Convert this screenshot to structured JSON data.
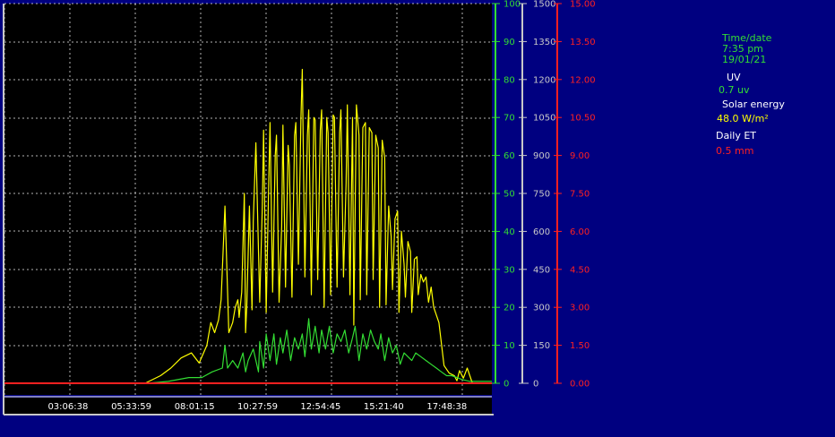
{
  "info": {
    "time_label": "Time/date",
    "time": "7:35 pm",
    "date": "19/01/21",
    "uv_label": "UV",
    "uv_value": "0.7 uv",
    "solar_label": "Solar energy",
    "solar_value": "48.0 W/m²",
    "et_label": "Daily ET",
    "et_value": "0.5 mm"
  },
  "colors": {
    "background": "#000080",
    "plot_background": "#000000",
    "uv": "#33dd33",
    "solar": "#ffff00",
    "et": "#ff2020",
    "grid": "#ffffff"
  },
  "chart_data": {
    "type": "line",
    "grid": true,
    "x_tick_labels": [
      "03:06:38",
      "05:33:59",
      "08:01:15",
      "10:27:59",
      "12:54:45",
      "15:21:40",
      "17:48:38"
    ],
    "x_hours": [
      3.111,
      5.566,
      8.021,
      10.466,
      12.913,
      15.361,
      17.811
    ],
    "x_range_hours": [
      0.646,
      19.556
    ],
    "axes": {
      "uv": {
        "range": [
          0,
          100
        ],
        "ticks": [
          "0",
          "10",
          "20",
          "30",
          "40",
          "50",
          "60",
          "70",
          "80",
          "90",
          "100"
        ]
      },
      "solar": {
        "range": [
          0,
          1500
        ],
        "ticks": [
          "0",
          "150",
          "300",
          "450",
          "600",
          "750",
          "900",
          "1050",
          "1200",
          "1350",
          "1500"
        ]
      },
      "et": {
        "range": [
          0,
          15
        ],
        "ticks": [
          "0.00",
          "1.50",
          "3.00",
          "4.50",
          "6.00",
          "7.50",
          "9.00",
          "10.50",
          "12.00",
          "13.50",
          "15.00"
        ]
      }
    },
    "series": [
      {
        "axis": "solar",
        "x": [
          0.646,
          6.1,
          6.7,
          7.1,
          7.5,
          7.9,
          8.2,
          8.5,
          8.65,
          8.8,
          8.95,
          9.05,
          9.2,
          9.35,
          9.5,
          9.6,
          9.7,
          9.75,
          9.85,
          9.95,
          10.0,
          10.05,
          10.15,
          10.25,
          10.3,
          10.4,
          10.55,
          10.65,
          10.7,
          10.8,
          10.9,
          10.95,
          11.05,
          11.15,
          11.2,
          11.3,
          11.4,
          11.45,
          11.55,
          11.65,
          11.7,
          11.8,
          11.9,
          11.95,
          12.05,
          12.15,
          12.2,
          12.3,
          12.4,
          12.45,
          12.55,
          12.65,
          12.7,
          12.8,
          12.9,
          12.95,
          13.05,
          13.15,
          13.2,
          13.3,
          13.4,
          13.45,
          13.55,
          13.65,
          13.7,
          13.8,
          13.9,
          13.95,
          14.05,
          14.15,
          14.2,
          14.3,
          14.4,
          14.45,
          14.55,
          14.65,
          14.7,
          14.8,
          14.9,
          14.95,
          15.05,
          15.15,
          15.2,
          15.3,
          15.4,
          15.45,
          15.55,
          15.65,
          15.7,
          15.8,
          15.9,
          15.95,
          16.05,
          16.15,
          16.2,
          16.3,
          16.4,
          16.45,
          16.55,
          16.65,
          16.7,
          16.8,
          16.9,
          17.0,
          17.1,
          17.2,
          17.3,
          17.5,
          17.7,
          17.9,
          18.1,
          18.2,
          18.3,
          18.45,
          18.6,
          18.8,
          19.0,
          19.2,
          19.556
        ],
        "y": [
          0,
          0,
          30,
          60,
          100,
          120,
          80,
          150,
          240,
          200,
          250,
          330,
          700,
          200,
          240,
          300,
          330,
          260,
          360,
          750,
          200,
          310,
          700,
          290,
          640,
          950,
          320,
          700,
          1000,
          280,
          800,
          1030,
          360,
          900,
          980,
          320,
          620,
          1020,
          380,
          940,
          860,
          340,
          980,
          1030,
          470,
          1050,
          1240,
          420,
          980,
          1080,
          350,
          1050,
          1040,
          410,
          1000,
          1080,
          300,
          1050,
          990,
          350,
          1060,
          1050,
          380,
          990,
          1080,
          420,
          790,
          1100,
          350,
          1050,
          230,
          1100,
          980,
          330,
          1010,
          1030,
          350,
          1010,
          990,
          410,
          980,
          930,
          300,
          960,
          890,
          310,
          700,
          580,
          370,
          650,
          680,
          280,
          600,
          470,
          340,
          560,
          520,
          280,
          490,
          500,
          350,
          430,
          400,
          420,
          320,
          380,
          300,
          240,
          70,
          40,
          30,
          10,
          50,
          20,
          60,
          0,
          0,
          0,
          0
        ]
      },
      {
        "axis": "uv",
        "x": [
          0.646,
          6.2,
          7.0,
          7.8,
          8.3,
          8.7,
          9.1,
          9.2,
          9.3,
          9.5,
          9.7,
          9.9,
          10.0,
          10.1,
          10.3,
          10.5,
          10.55,
          10.7,
          10.8,
          10.95,
          11.1,
          11.2,
          11.35,
          11.45,
          11.6,
          11.75,
          11.9,
          12.05,
          12.2,
          12.3,
          12.45,
          12.55,
          12.7,
          12.85,
          12.95,
          13.1,
          13.25,
          13.4,
          13.55,
          13.7,
          13.85,
          14.0,
          14.15,
          14.25,
          14.4,
          14.55,
          14.7,
          14.85,
          15.0,
          15.15,
          15.25,
          15.4,
          15.55,
          15.7,
          15.85,
          16.0,
          16.15,
          16.3,
          16.45,
          16.6,
          16.8,
          17.0,
          17.2,
          17.4,
          17.6,
          17.8,
          18.0,
          18.2,
          18.4,
          18.7,
          19.0,
          19.556
        ],
        "y": [
          0,
          0,
          0.5,
          1.5,
          1.5,
          3,
          4,
          10,
          4,
          6,
          4,
          8,
          3,
          6,
          9,
          3,
          11,
          4,
          13,
          6,
          13,
          5,
          12,
          8,
          14,
          6,
          12,
          9,
          13,
          7,
          17,
          9,
          15,
          8,
          14,
          9,
          15,
          8,
          13,
          11,
          14,
          8,
          12,
          15,
          6,
          13,
          9,
          14,
          11,
          9,
          13,
          6,
          12,
          8,
          10,
          5,
          8,
          7,
          6,
          8,
          7,
          6,
          5,
          4,
          3,
          2,
          2,
          1.5,
          1,
          0.5,
          0.5,
          0.5
        ]
      },
      {
        "axis": "et",
        "x": [
          0.646,
          19.556
        ],
        "y": [
          0,
          0
        ]
      }
    ]
  }
}
